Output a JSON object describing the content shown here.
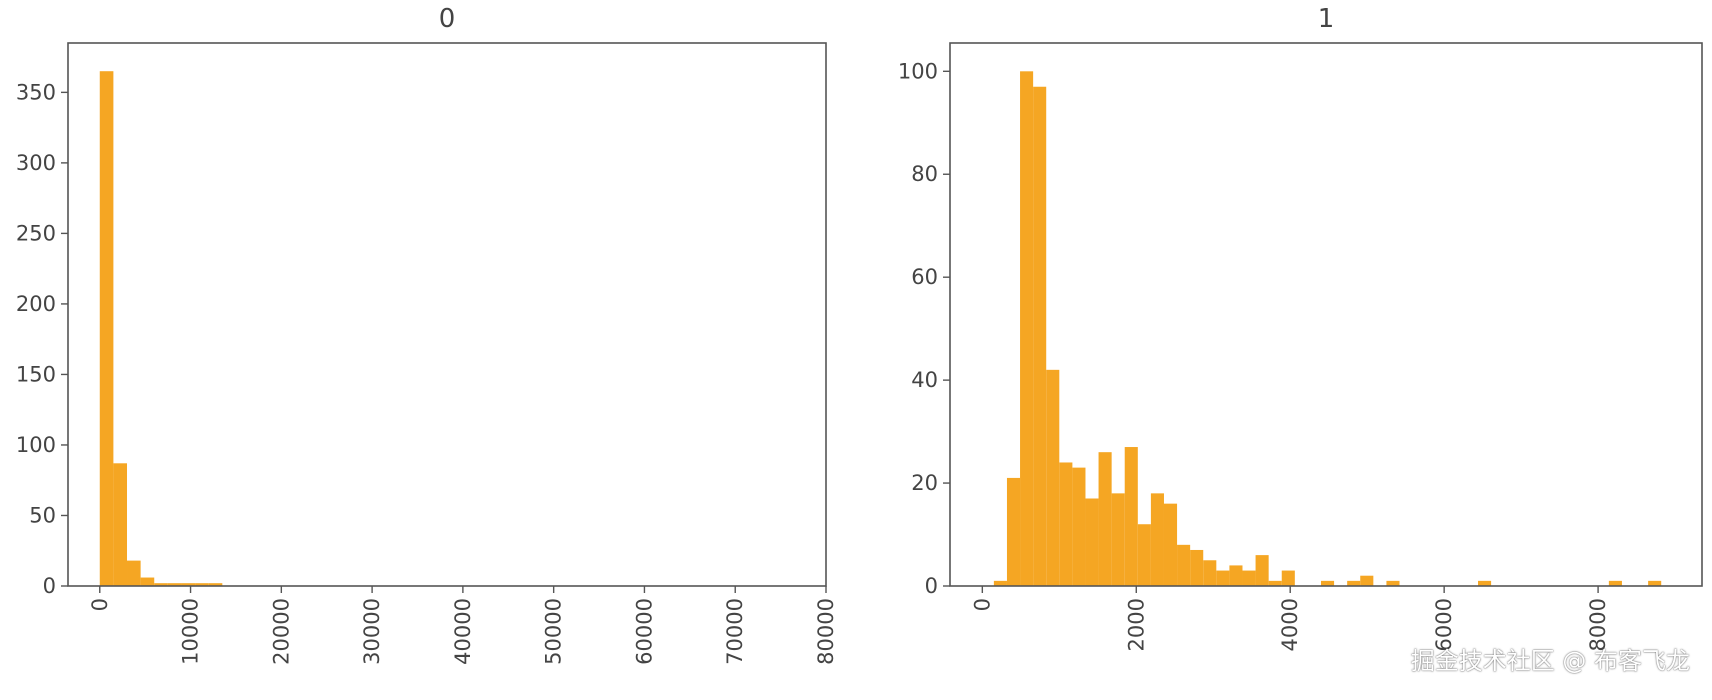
{
  "colors": {
    "bar": "#f5a623",
    "axis": "#555555",
    "text": "#444444"
  },
  "watermark": "掘金技术社区 @ 布客飞龙",
  "chart_data": [
    {
      "type": "bar",
      "title": "0",
      "xlabel": "",
      "ylabel": "",
      "grid": false,
      "xlim": [
        -3500,
        80000
      ],
      "ylim": [
        0,
        385
      ],
      "xticks": [
        0,
        10000,
        20000,
        30000,
        40000,
        50000,
        60000,
        70000,
        80000
      ],
      "xtick_labels": [
        "0",
        "10000",
        "20000",
        "30000",
        "40000",
        "50000",
        "60000",
        "70000",
        "80000"
      ],
      "yticks": [
        0,
        50,
        100,
        150,
        200,
        250,
        300,
        350
      ],
      "ytick_labels": [
        "0",
        "50",
        "100",
        "150",
        "200",
        "250",
        "300",
        "350"
      ],
      "x_tick_rotation": -90,
      "bin_start": 0,
      "bin_width": 1500,
      "values": [
        365,
        87,
        18,
        6,
        2,
        2,
        2,
        2,
        2,
        0
      ]
    },
    {
      "type": "bar",
      "title": "1",
      "xlabel": "",
      "ylabel": "",
      "grid": false,
      "xlim": [
        -420,
        9350
      ],
      "ylim": [
        0,
        105.5
      ],
      "xticks": [
        0,
        2000,
        4000,
        6000,
        8000
      ],
      "xtick_labels": [
        "0",
        "2000",
        "4000",
        "6000",
        "8000"
      ],
      "yticks": [
        0,
        20,
        40,
        60,
        80,
        100
      ],
      "ytick_labels": [
        "0",
        "20",
        "40",
        "60",
        "80",
        "100"
      ],
      "x_tick_rotation": -90,
      "bin_start": 150,
      "bin_width": 170,
      "values": [
        1,
        21,
        100,
        97,
        42,
        24,
        23,
        17,
        26,
        18,
        27,
        12,
        18,
        16,
        8,
        7,
        5,
        3,
        4,
        3,
        6,
        1,
        3,
        0,
        0,
        1,
        0,
        1,
        2,
        0,
        1,
        0,
        0,
        0,
        0,
        0,
        0,
        1,
        0,
        0,
        0,
        0,
        0,
        0,
        0,
        0,
        0,
        1,
        0,
        0,
        1
      ]
    }
  ]
}
